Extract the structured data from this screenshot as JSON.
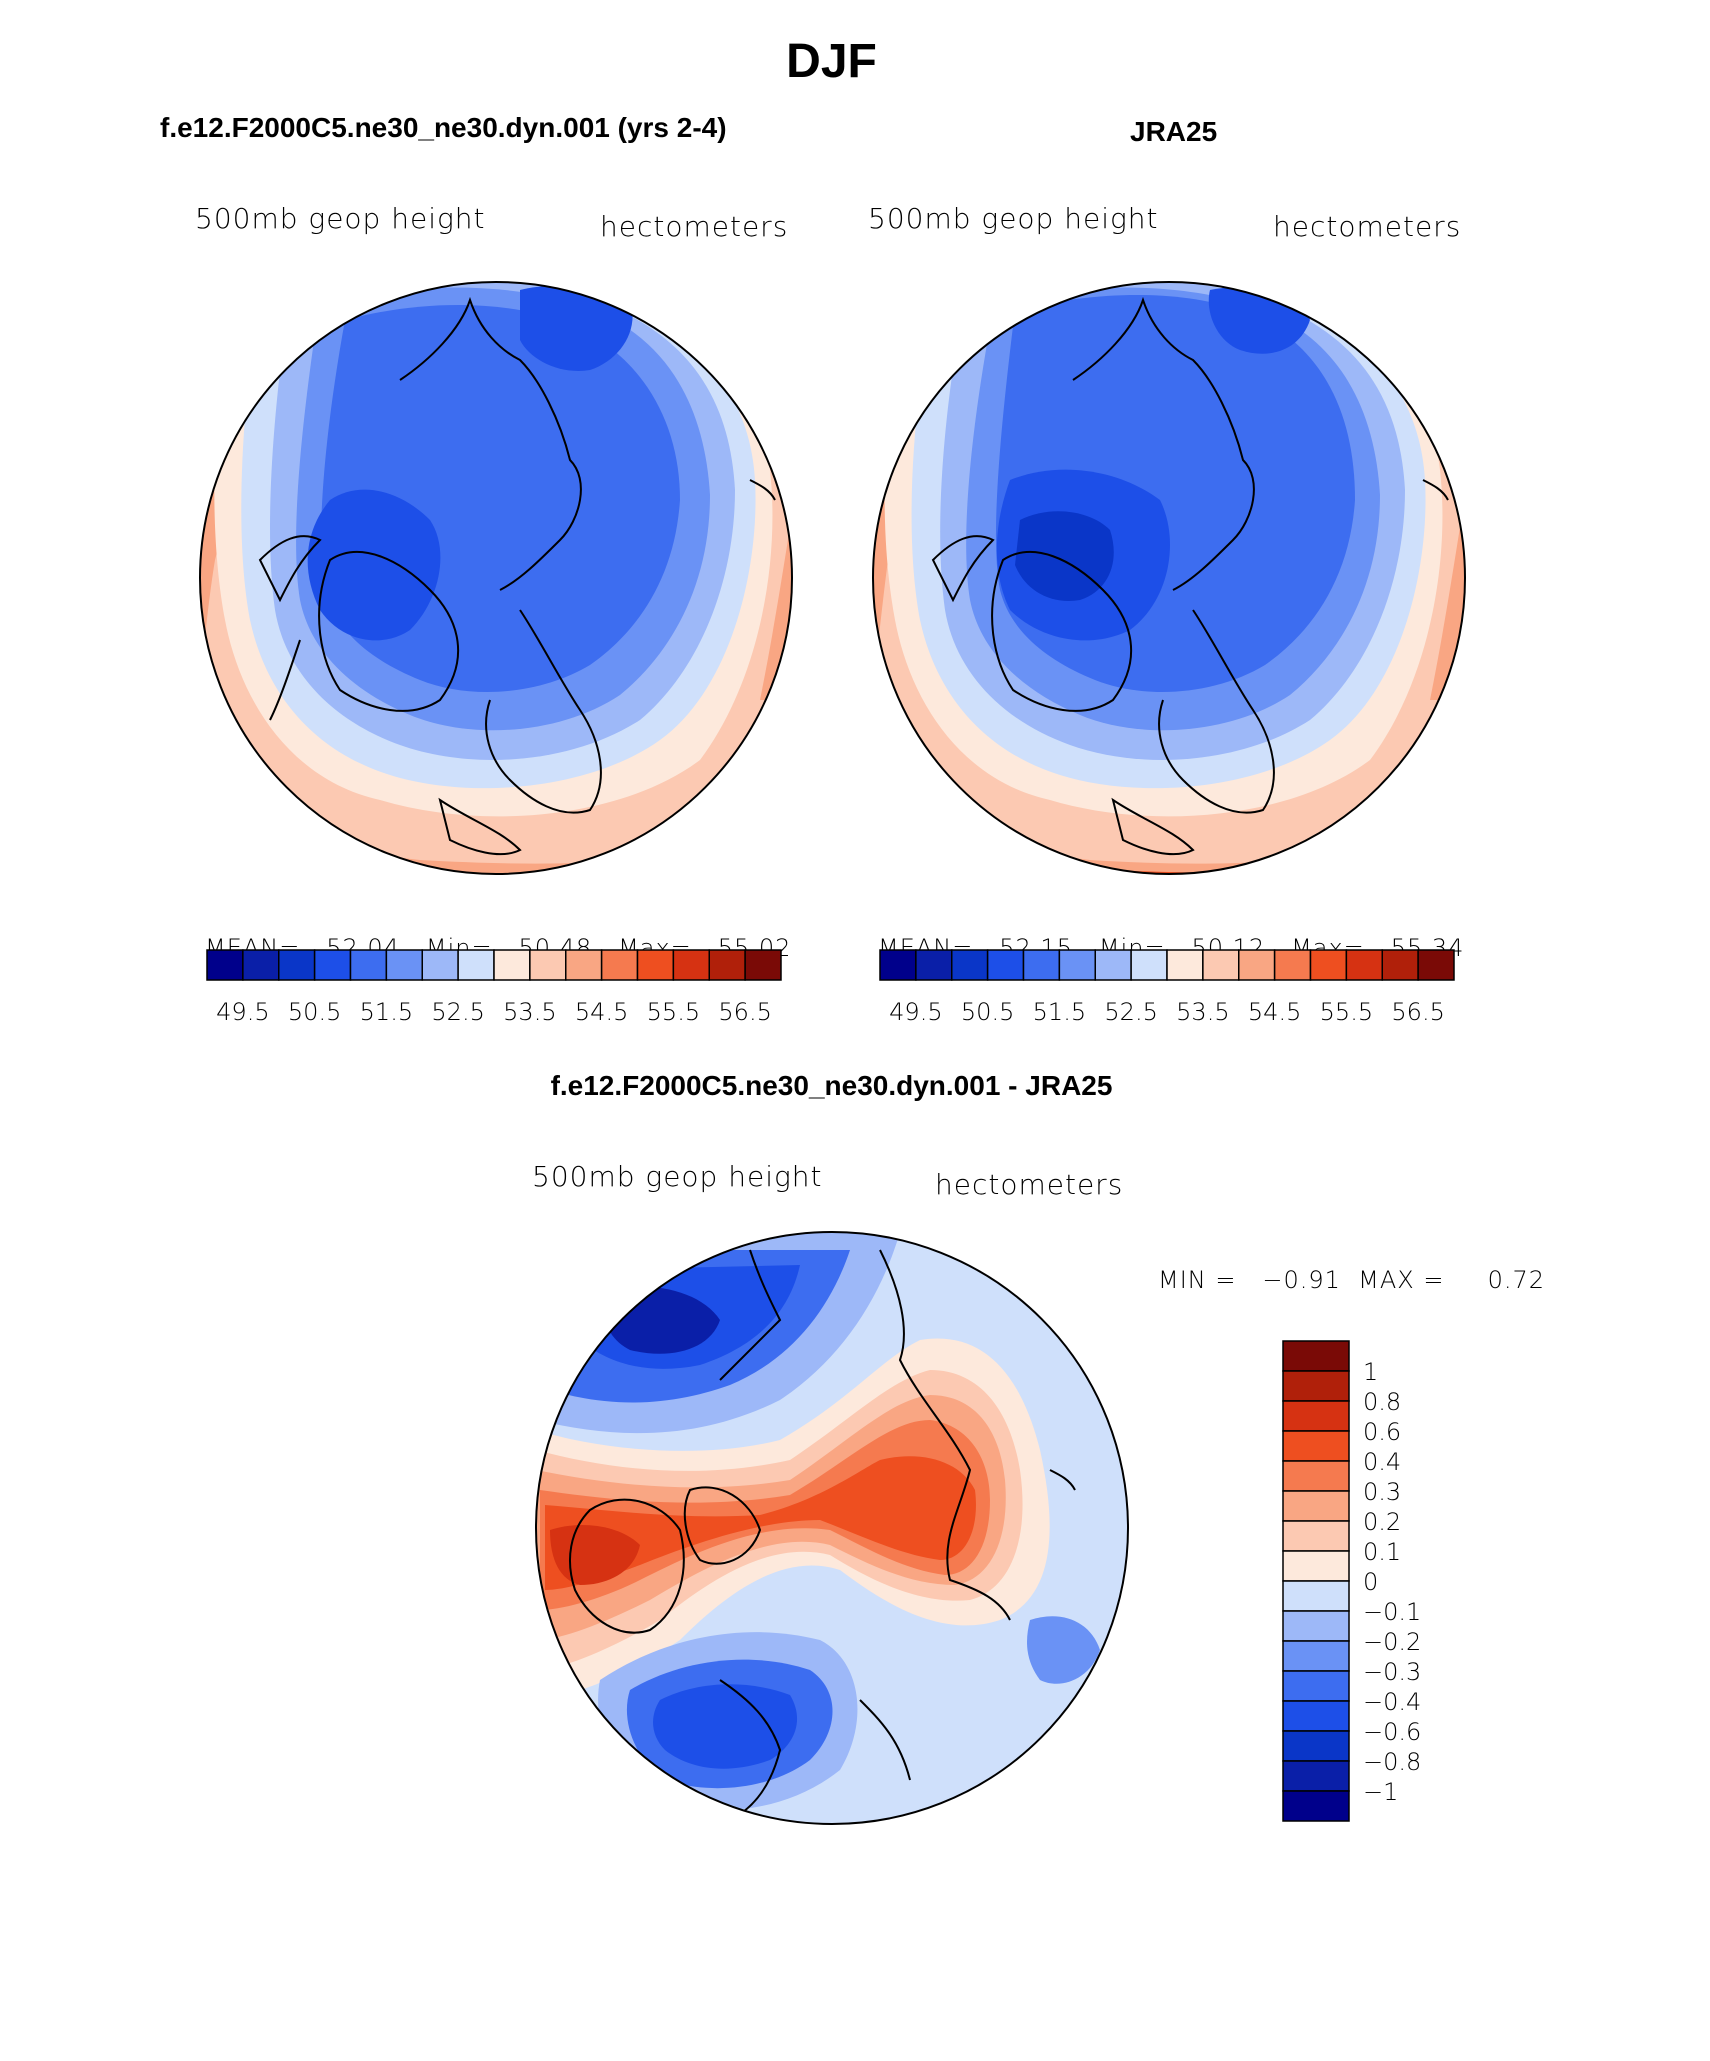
{
  "figure": {
    "title": "DJF",
    "panel_left": {
      "title": "f.e12.F2000C5.ne30_ne30.dyn.001 (yrs 2-4)",
      "var_label": "500mb geop height",
      "units": "hectometers",
      "stats": {
        "mean_label": "MEAN=",
        "mean": "52.04",
        "min_label": "Min=",
        "min": "50.48",
        "max_label": "Max=",
        "max": "55.02"
      }
    },
    "panel_right": {
      "title": "JRA25",
      "var_label": "500mb geop height",
      "units": "hectometers",
      "stats": {
        "mean_label": "MEAN=",
        "mean": "52.15",
        "min_label": "Min=",
        "min": "50.12",
        "max_label": "Max=",
        "max": "55.34"
      }
    },
    "panel_diff": {
      "title": "f.e12.F2000C5.ne30_ne30.dyn.001 - JRA25",
      "var_label": "500mb geop height",
      "units": "hectometers",
      "minmax": "MIN =   −0.91  MAX =     0.72"
    },
    "abs_colorbar": {
      "colors": [
        "#00008b",
        "#0a1fa8",
        "#0a36c8",
        "#1d4fe8",
        "#3d6df0",
        "#6a92f5",
        "#9db8f8",
        "#cfe0fb",
        "#fde9dc",
        "#fcc9b2",
        "#f9a683",
        "#f57a4f",
        "#ee4f20",
        "#d63212",
        "#b0200a",
        "#7a0a06"
      ],
      "tick_labels": [
        "49.5",
        "50.5",
        "51.5",
        "52.5",
        "53.5",
        "54.5",
        "55.5",
        "56.5"
      ]
    },
    "diff_colorbar": {
      "colors": [
        "#7a0a06",
        "#b0200a",
        "#d63212",
        "#ee4f20",
        "#f57a4f",
        "#f9a683",
        "#fcc9b2",
        "#fde9dc",
        "#cfe0fb",
        "#9db8f8",
        "#6a92f5",
        "#3d6df0",
        "#1d4fe8",
        "#0a36c8",
        "#0a1fa8",
        "#00008b"
      ],
      "tick_labels": [
        "1",
        "0.8",
        "0.6",
        "0.4",
        "0.3",
        "0.2",
        "0.1",
        "0",
        "−0.1",
        "−0.2",
        "−0.3",
        "−0.4",
        "−0.6",
        "−0.8",
        "−1"
      ]
    }
  }
}
